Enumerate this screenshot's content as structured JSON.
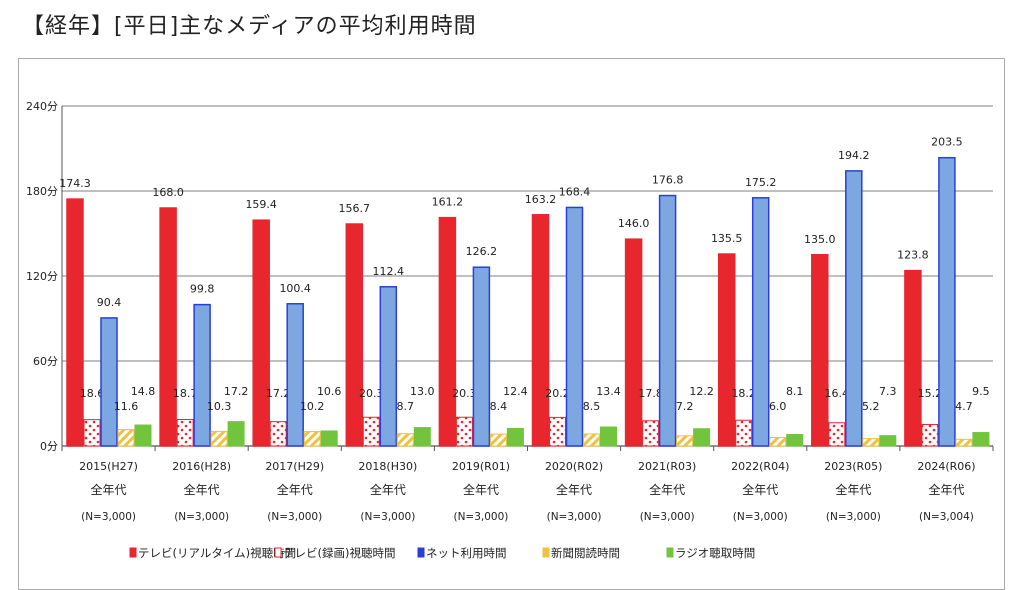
{
  "title": "【経年】[平日]主なメディアの平均利用時間",
  "chart_data": {
    "type": "bar",
    "title": "【経年】[平日]主なメディアの平均利用時間",
    "ylim": [
      0,
      240
    ],
    "yticks": [
      "0分",
      "60分",
      "120分",
      "180分",
      "240分"
    ],
    "ytick_values": [
      0,
      60,
      120,
      180,
      240
    ],
    "grid": true,
    "legend_position": "bottom",
    "categories": [
      "2015(H27)",
      "2016(H28)",
      "2017(H29)",
      "2018(H30)",
      "2019(R01)",
      "2020(R02)",
      "2021(R03)",
      "2022(R04)",
      "2023(R05)",
      "2024(R06)"
    ],
    "category_sub": "全年代",
    "category_n": [
      "(N=3,000)",
      "(N=3,000)",
      "(N=3,000)",
      "(N=3,000)",
      "(N=3,000)",
      "(N=3,000)",
      "(N=3,000)",
      "(N=3,000)",
      "(N=3,000)",
      "(N=3,004)"
    ],
    "series": [
      {
        "name": "テレビ(リアルタイム)視聴時間",
        "color": "#e8262e",
        "values": [
          174.3,
          168.0,
          159.4,
          156.7,
          161.2,
          163.2,
          146.0,
          135.5,
          135.0,
          123.8
        ]
      },
      {
        "name": "テレビ(録画)視聴時間",
        "color": "#e8262e",
        "pattern": "dots",
        "values": [
          18.6,
          18.7,
          17.2,
          20.3,
          20.3,
          20.2,
          17.8,
          18.2,
          16.4,
          15.2
        ]
      },
      {
        "name": "ネット利用時間",
        "color": "#7da7e0",
        "values": [
          90.4,
          99.8,
          100.4,
          112.4,
          126.2,
          168.4,
          176.8,
          175.2,
          194.2,
          203.5
        ]
      },
      {
        "name": "新聞閲読時間",
        "color": "#f0c040",
        "pattern": "stripes",
        "values": [
          11.6,
          10.3,
          10.2,
          8.7,
          8.4,
          8.5,
          7.2,
          6.0,
          5.2,
          4.7
        ]
      },
      {
        "name": "ラジオ聴取時間",
        "color": "#72c43c",
        "values": [
          14.8,
          17.2,
          10.6,
          13.0,
          12.4,
          13.4,
          12.2,
          8.1,
          7.3,
          9.5
        ]
      }
    ]
  }
}
